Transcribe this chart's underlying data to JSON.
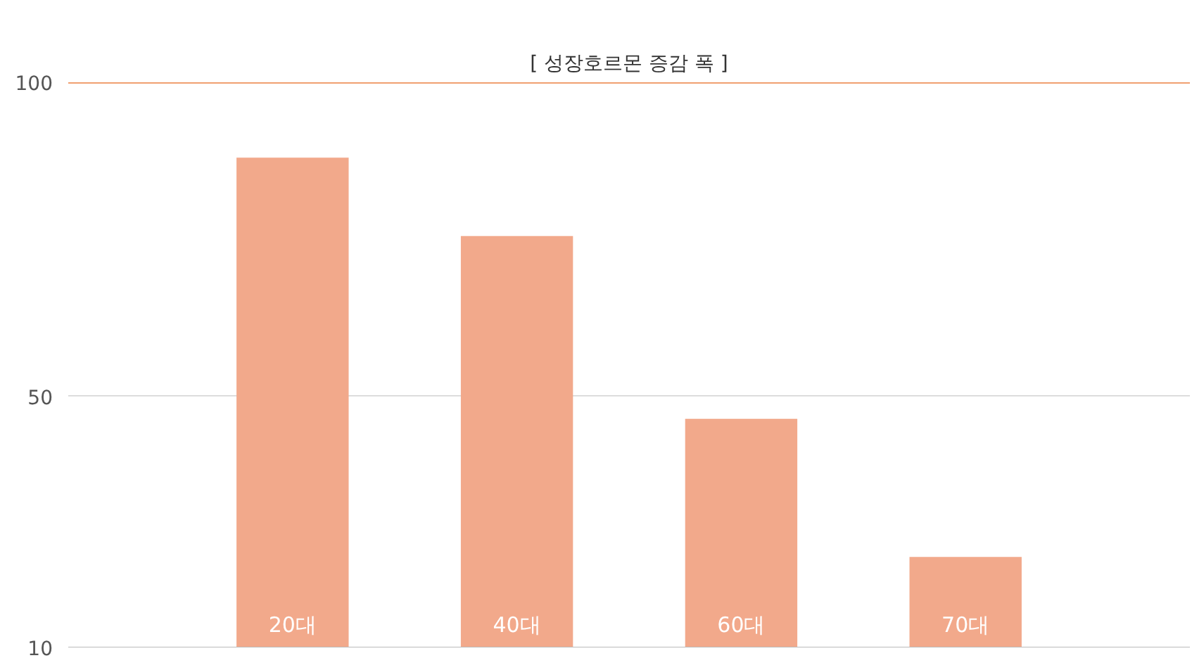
{
  "chart_data": {
    "type": "bar",
    "title": "[ 성장호르몬 증감 폭 ]",
    "categories": [
      "20대",
      "40대",
      "60대",
      "70대"
    ],
    "values": [
      88,
      75.5,
      46.4,
      24.4
    ],
    "color": "#f2a98b",
    "ylim": [
      10,
      100
    ],
    "yticks": [
      10,
      50,
      100
    ],
    "grid": "y",
    "ref_lines": [
      {
        "axis": "y",
        "value": 100,
        "color": "#f0a070"
      }
    ]
  }
}
